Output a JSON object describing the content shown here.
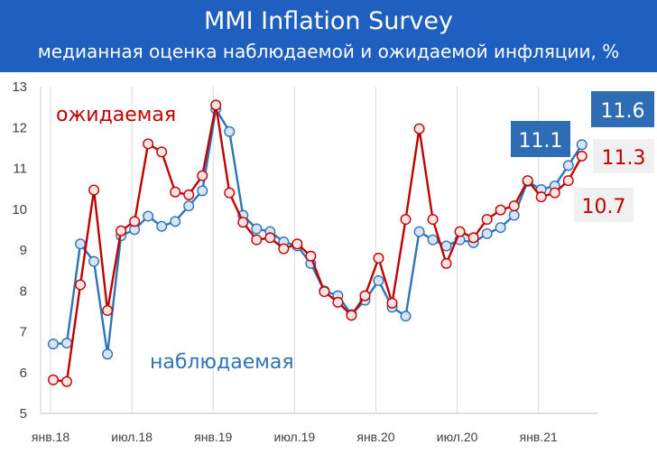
{
  "header": {
    "title": "MMI Inflation Survey",
    "subtitle": "медианная оценка наблюдаемой и ожидаемой инфляции, %"
  },
  "chart_data": {
    "type": "line",
    "title": "MMI Inflation Survey",
    "subtitle": "медианная оценка наблюдаемой и ожидаемой инфляции, %",
    "ylim": [
      5,
      13
    ],
    "yticks": [
      5,
      6,
      7,
      8,
      9,
      10,
      11,
      12,
      13
    ],
    "xticks": [
      {
        "index": 0,
        "label": "янв.18"
      },
      {
        "index": 6,
        "label": "июл.18"
      },
      {
        "index": 12,
        "label": "янв.19"
      },
      {
        "index": 18,
        "label": "июл.19"
      },
      {
        "index": 24,
        "label": "янв.20"
      },
      {
        "index": 30,
        "label": "июл.20"
      },
      {
        "index": 36,
        "label": "янв.21"
      }
    ],
    "grid": "vertical",
    "series": [
      {
        "name": "ожидаемая",
        "color": "#c00000",
        "values": [
          5.82,
          5.78,
          8.15,
          10.47,
          7.52,
          9.47,
          9.7,
          11.6,
          11.4,
          10.42,
          10.35,
          10.82,
          12.55,
          10.4,
          9.68,
          9.25,
          9.3,
          9.03,
          9.15,
          8.85,
          7.98,
          7.72,
          7.4,
          7.88,
          8.8,
          7.7,
          9.75,
          11.97,
          9.75,
          8.67,
          9.45,
          9.3,
          9.75,
          9.98,
          10.08,
          10.7,
          10.3,
          10.4,
          10.7,
          11.3
        ]
      },
      {
        "name": "наблюдаемая",
        "color": "#2e75b6",
        "values": [
          6.7,
          6.72,
          9.15,
          8.72,
          6.45,
          9.35,
          9.5,
          9.83,
          9.58,
          9.7,
          10.08,
          10.45,
          12.45,
          11.9,
          9.85,
          9.52,
          9.45,
          9.2,
          9.1,
          8.67,
          8.0,
          7.88,
          7.42,
          7.77,
          8.25,
          7.6,
          7.38,
          9.45,
          9.25,
          9.1,
          9.25,
          9.18,
          9.4,
          9.55,
          9.85,
          10.68,
          10.48,
          10.57,
          11.07,
          11.58
        ]
      }
    ],
    "annotations": [
      {
        "text": "ожидаемая",
        "series": "ожидаемая"
      },
      {
        "text": "наблюдаемая",
        "series": "наблюдаемая"
      },
      {
        "text": "11.6",
        "series": "наблюдаемая",
        "style": "boxed"
      },
      {
        "text": "11.1",
        "series": "наблюдаемая",
        "style": "boxed"
      },
      {
        "text": "11.3",
        "series": "ожидаемая",
        "style": "plain"
      },
      {
        "text": "10.7",
        "series": "ожидаемая",
        "style": "plain"
      }
    ]
  }
}
